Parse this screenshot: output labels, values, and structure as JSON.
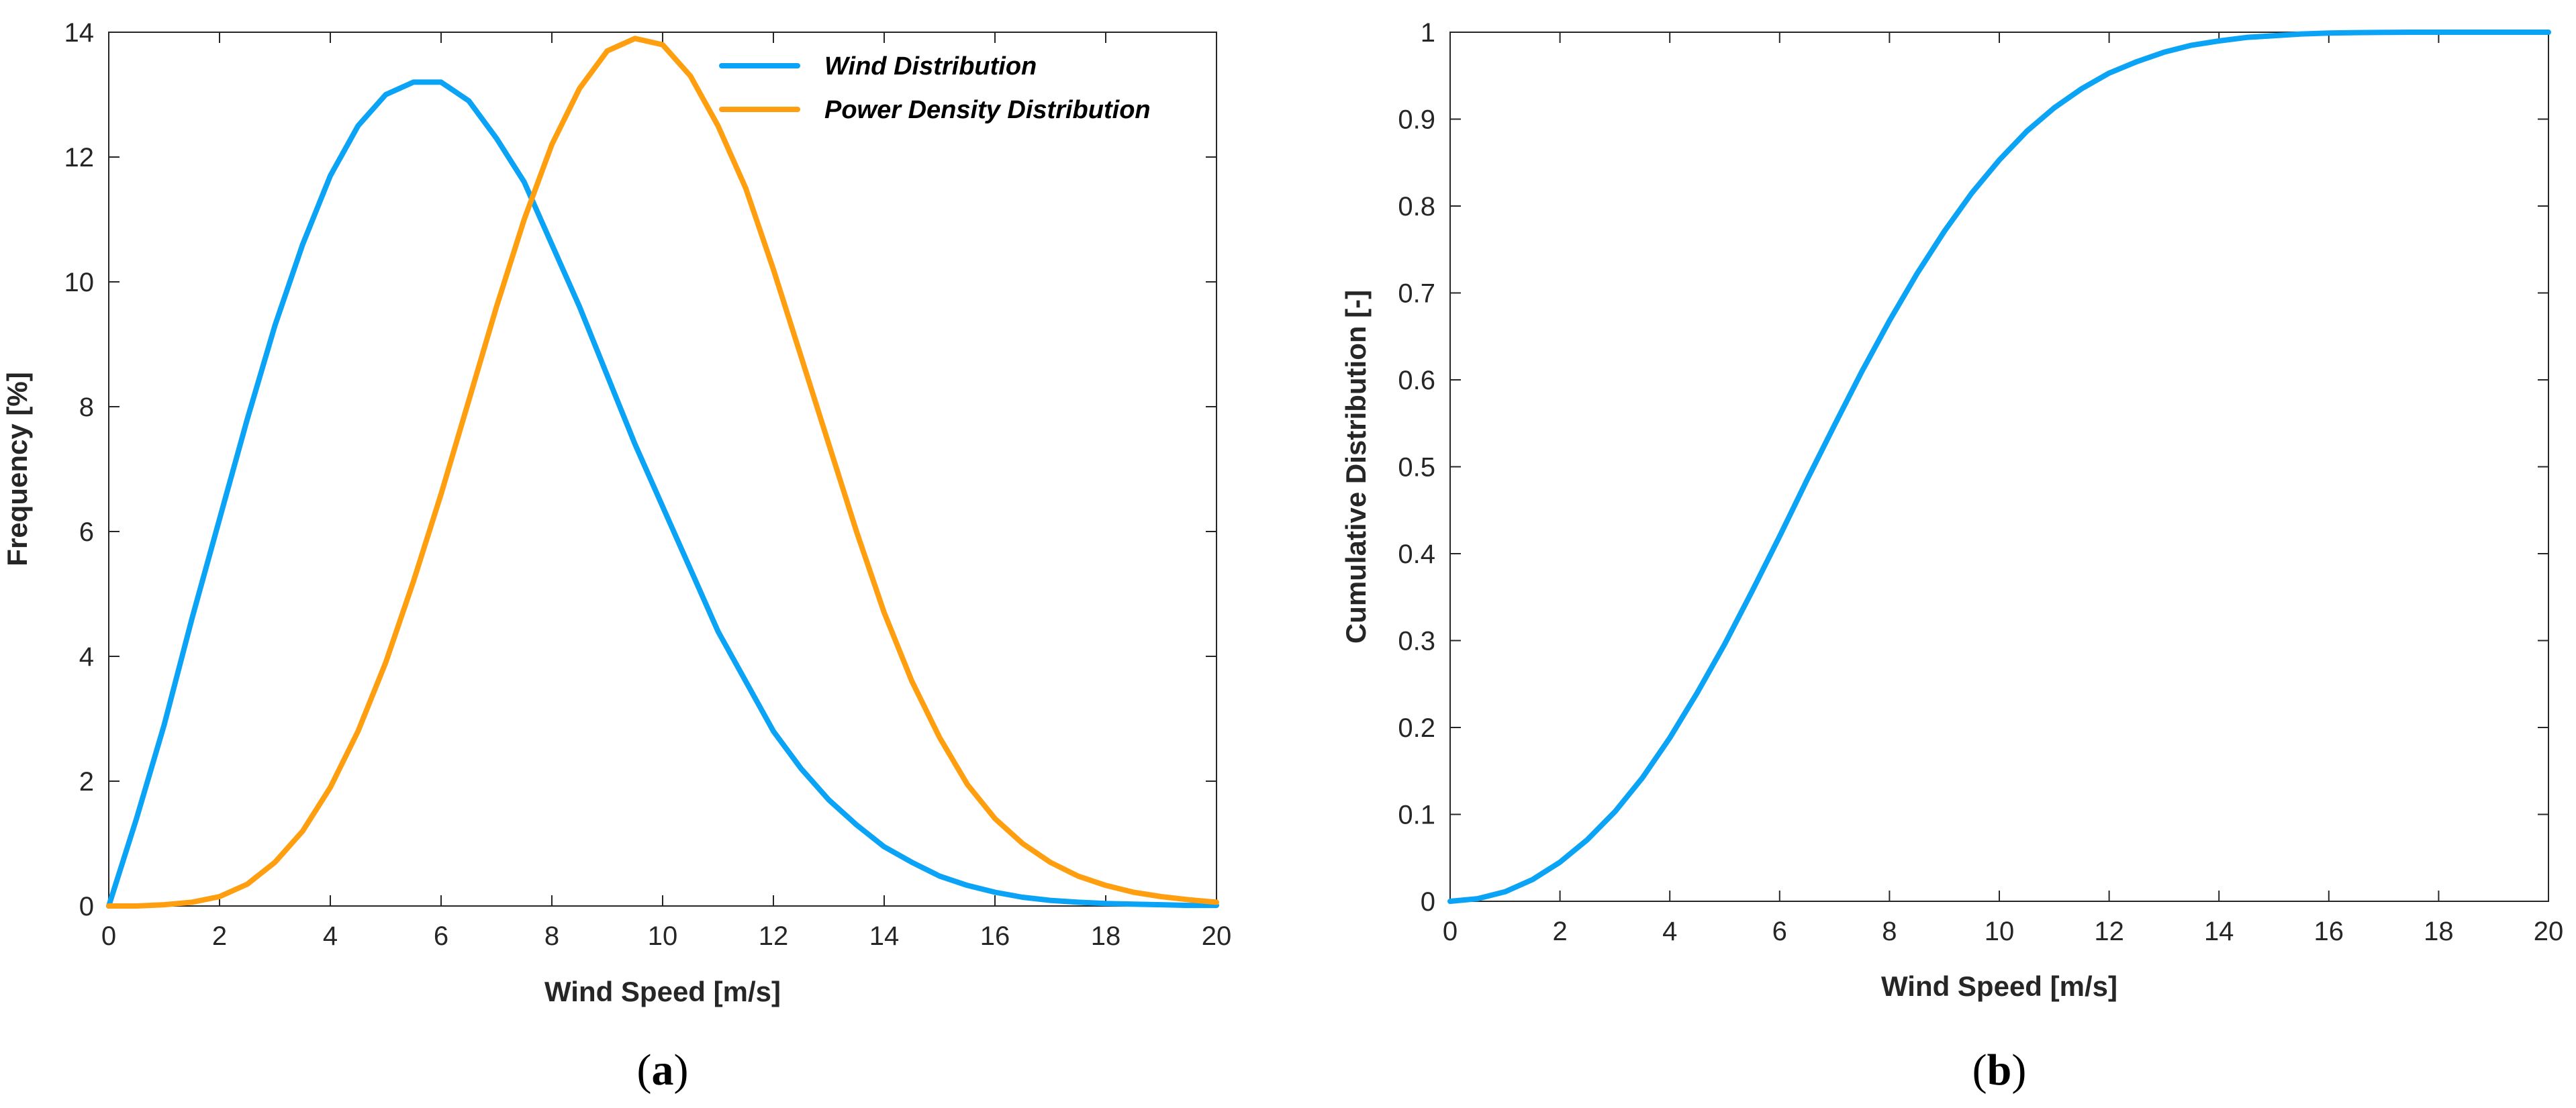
{
  "chart_data": [
    {
      "id": "a",
      "type": "line",
      "caption": "a",
      "xlabel": "Wind Speed [m/s]",
      "ylabel": "Frequency [%]",
      "xlim": [
        0,
        20
      ],
      "ylim": [
        0,
        14
      ],
      "x_ticks": [
        0,
        2,
        4,
        6,
        8,
        10,
        12,
        14,
        16,
        18,
        20
      ],
      "y_ticks": [
        0,
        2,
        4,
        6,
        8,
        10,
        12,
        14
      ],
      "grid": false,
      "legend_position": "top-right",
      "x": [
        0,
        0.5,
        1,
        1.5,
        2,
        2.5,
        3,
        3.5,
        4,
        4.5,
        5,
        5.5,
        6,
        6.5,
        7,
        7.5,
        8,
        8.5,
        9,
        9.5,
        10,
        10.5,
        11,
        11.5,
        12,
        12.5,
        13,
        13.5,
        14,
        14.5,
        15,
        15.5,
        16,
        16.5,
        17,
        17.5,
        18,
        18.5,
        19,
        19.5,
        20
      ],
      "series": [
        {
          "name": "Wind Distribution",
          "color": "#0aa3f5",
          "values": [
            0,
            1.4,
            2.9,
            4.6,
            6.2,
            7.8,
            9.3,
            10.6,
            11.7,
            12.5,
            13.0,
            13.2,
            13.2,
            12.9,
            12.3,
            11.6,
            10.6,
            9.6,
            8.5,
            7.4,
            6.4,
            5.4,
            4.4,
            3.6,
            2.8,
            2.2,
            1.7,
            1.3,
            0.95,
            0.7,
            0.48,
            0.33,
            0.22,
            0.14,
            0.09,
            0.06,
            0.04,
            0.03,
            0.02,
            0.01,
            0.01
          ]
        },
        {
          "name": "Power Density Distribution",
          "color": "#ff9e0f",
          "values": [
            0,
            0.0,
            0.02,
            0.06,
            0.15,
            0.35,
            0.7,
            1.2,
            1.9,
            2.8,
            3.9,
            5.2,
            6.6,
            8.1,
            9.6,
            11.0,
            12.2,
            13.1,
            13.7,
            13.9,
            13.8,
            13.3,
            12.5,
            11.5,
            10.2,
            8.8,
            7.4,
            6.0,
            4.7,
            3.6,
            2.7,
            1.95,
            1.4,
            1.0,
            0.7,
            0.48,
            0.33,
            0.22,
            0.15,
            0.1,
            0.06
          ]
        }
      ]
    },
    {
      "id": "b",
      "type": "line",
      "caption": "b",
      "xlabel": "Wind Speed [m/s]",
      "ylabel": "Cumulative Distribution [-]",
      "xlim": [
        0,
        20
      ],
      "ylim": [
        0,
        1
      ],
      "x_ticks": [
        0,
        2,
        4,
        6,
        8,
        10,
        12,
        14,
        16,
        18,
        20
      ],
      "y_ticks": [
        0,
        0.1,
        0.2,
        0.3,
        0.4,
        0.5,
        0.6,
        0.7,
        0.8,
        0.9,
        1
      ],
      "grid": false,
      "x": [
        0,
        0.5,
        1,
        1.5,
        2,
        2.5,
        3,
        3.5,
        4,
        4.5,
        5,
        5.5,
        6,
        6.5,
        7,
        7.5,
        8,
        8.5,
        9,
        9.5,
        10,
        10.5,
        11,
        11.5,
        12,
        12.5,
        13,
        13.5,
        14,
        14.5,
        15,
        15.5,
        16,
        16.5,
        17,
        17.5,
        18,
        18.5,
        19,
        19.5,
        20
      ],
      "series": [
        {
          "name": "Cumulative Distribution",
          "color": "#0aa3f5",
          "values": [
            0,
            0.003,
            0.011,
            0.025,
            0.045,
            0.071,
            0.103,
            0.142,
            0.188,
            0.24,
            0.296,
            0.357,
            0.42,
            0.485,
            0.548,
            0.61,
            0.668,
            0.722,
            0.771,
            0.815,
            0.853,
            0.886,
            0.913,
            0.935,
            0.953,
            0.966,
            0.977,
            0.985,
            0.99,
            0.994,
            0.996,
            0.998,
            0.999,
            0.9995,
            0.9998,
            1.0,
            1.0,
            1.0,
            1.0,
            1.0,
            1.0
          ]
        }
      ]
    }
  ]
}
